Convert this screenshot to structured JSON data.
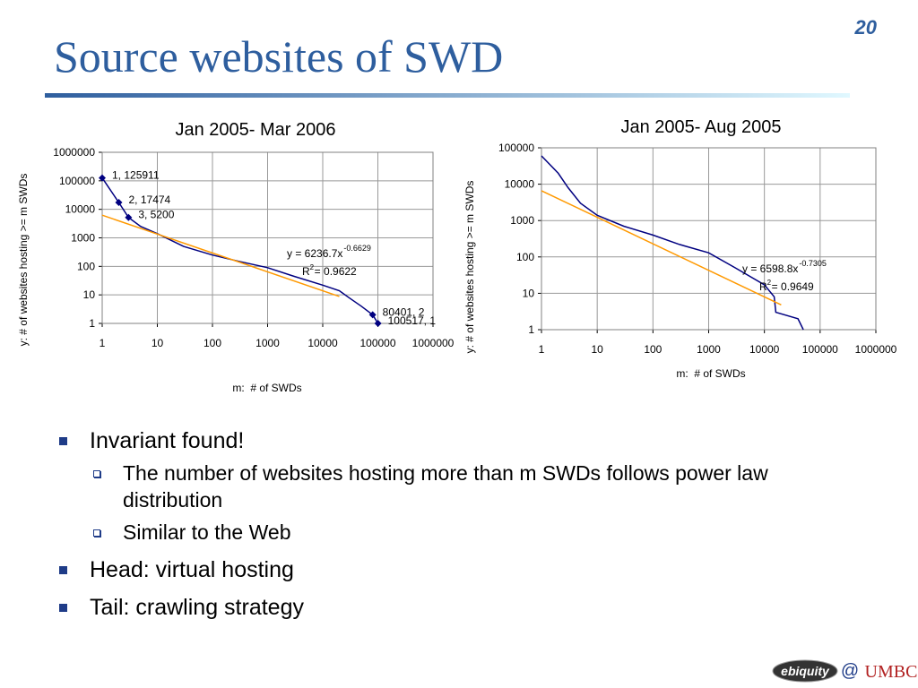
{
  "slide": {
    "title": "Source websites of SWD",
    "page_number": "20",
    "bullets": [
      {
        "text": "Invariant found!",
        "level": 1
      },
      {
        "text": "The number of websites hosting more than m SWDs follows power law distribution",
        "level": 2
      },
      {
        "text": "Similar to the Web",
        "level": 2
      },
      {
        "text": "Head: virtual hosting",
        "level": 1
      },
      {
        "text": "Tail: crawling strategy",
        "level": 1
      }
    ],
    "footer": {
      "logo_left": "ebiquity",
      "separator": "@",
      "logo_right": "UMBC"
    }
  },
  "chart_data": [
    {
      "type": "line",
      "title": "Jan 2005- Mar 2006",
      "x_label": "m:  # of SWDs",
      "y_label": "y:  # of websites hosting >= m SWDs",
      "log_x": true,
      "log_y": true,
      "grid": true,
      "xlim": [
        1,
        1000000
      ],
      "xticks": [
        1,
        10,
        100,
        1000,
        10000,
        100000,
        1000000
      ],
      "ylim": [
        1,
        1000000
      ],
      "yticks": [
        1,
        10,
        100,
        1000,
        10000,
        100000,
        1000000
      ],
      "series": [
        {
          "color": "#000080",
          "x": [
            1,
            2,
            3,
            5,
            10,
            30,
            100,
            300,
            1000,
            3000,
            10000,
            20000,
            30000,
            50000,
            80401,
            100517
          ],
          "values": [
            125911,
            17474,
            5200,
            2500,
            1400,
            500,
            250,
            150,
            90,
            45,
            22,
            14,
            8,
            4,
            2,
            1
          ]
        },
        {
          "color": "#FF9900",
          "x": [
            1,
            20000
          ],
          "values": [
            6237,
            8.8
          ]
        },
        {
          "color": "#000080",
          "marker": "diamond",
          "line": false,
          "x": [
            1,
            2,
            3,
            80401,
            100517
          ],
          "values": [
            125911,
            17474,
            5200,
            2,
            1
          ],
          "value_labels": [
            "1, 125911",
            "2, 17474",
            "3, 5200",
            "80401, 2",
            "100517, 1"
          ]
        }
      ],
      "equation": "y = 6236.7x",
      "equation_exponent": "-0.6629",
      "r_squared_label": "R",
      "r_squared_exponent": "2",
      "r_squared_value": "= 0.9622"
    },
    {
      "type": "line",
      "title": "Jan 2005- Aug 2005",
      "x_label": "m:  # of SWDs",
      "y_label": "y:  # of websites hosting >= m SWDs",
      "log_x": true,
      "log_y": true,
      "grid": true,
      "xlim": [
        1,
        1000000
      ],
      "xticks": [
        1,
        10,
        100,
        1000,
        10000,
        100000,
        1000000
      ],
      "ylim": [
        1,
        100000
      ],
      "yticks": [
        1,
        10,
        100,
        1000,
        10000,
        100000
      ],
      "series": [
        {
          "color": "#000080",
          "x": [
            1,
            2,
            3,
            5,
            10,
            30,
            100,
            300,
            1000,
            3000,
            10000,
            15000,
            16000,
            40000,
            50000
          ],
          "values": [
            60000,
            20000,
            8000,
            3000,
            1400,
            700,
            400,
            220,
            130,
            50,
            17,
            8,
            3,
            2,
            1
          ]
        },
        {
          "color": "#FF9900",
          "x": [
            1,
            20000
          ],
          "values": [
            6599,
            4.8
          ]
        }
      ],
      "equation": "y = 6598.8x",
      "equation_exponent": "-0.7305",
      "r_squared_label": "R",
      "r_squared_exponent": "2",
      "r_squared_value": "= 0.9649"
    }
  ]
}
